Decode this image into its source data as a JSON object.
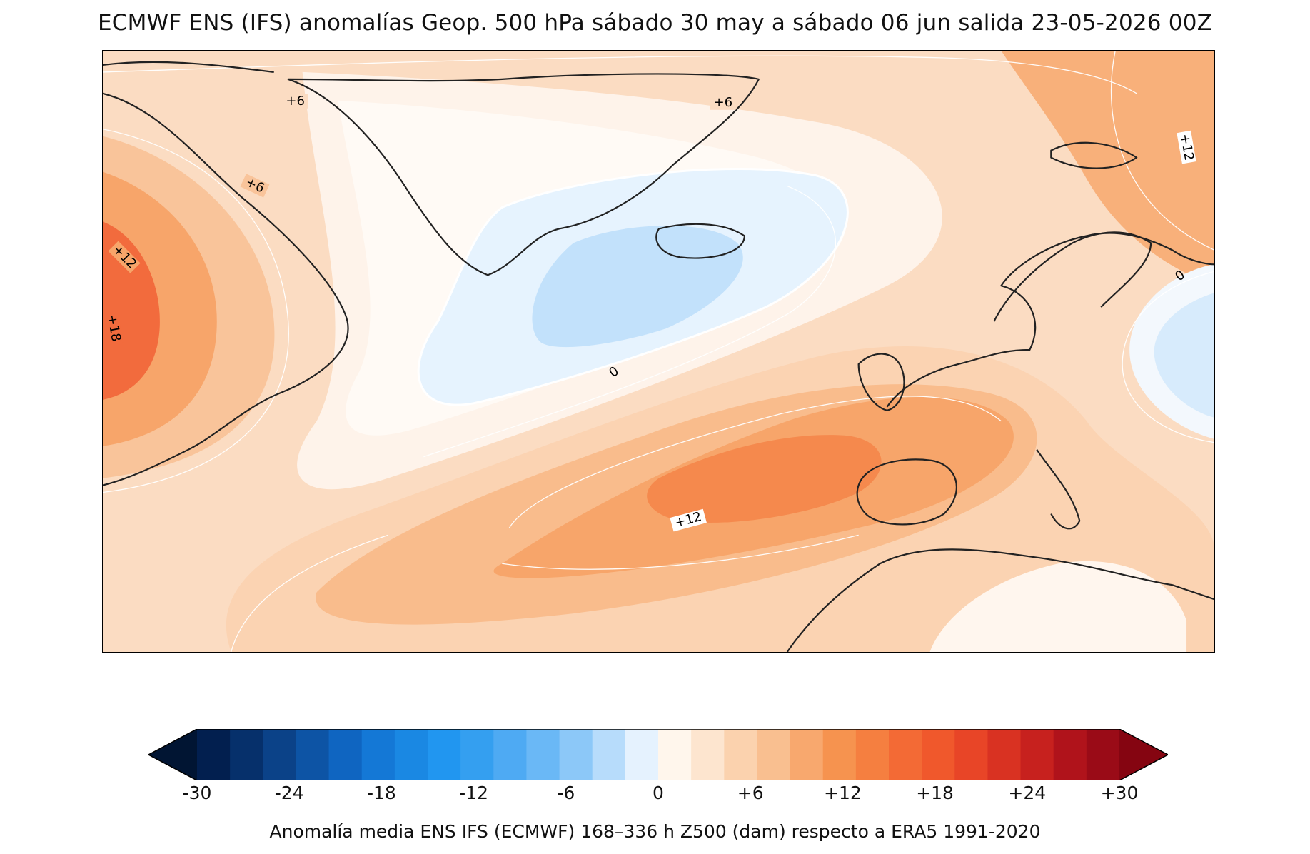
{
  "title": "ECMWF ENS (IFS) anomalías Geop. 500 hPa sábado 30 may a sábado 06 jun salida 23-05-2026 00Z",
  "map": {
    "contour_labels": [
      {
        "id": "c1",
        "text": "+6"
      },
      {
        "id": "c2",
        "text": "+6"
      },
      {
        "id": "c3",
        "text": "+6"
      },
      {
        "id": "c4",
        "text": "+12"
      },
      {
        "id": "c5",
        "text": "+12"
      },
      {
        "id": "c6",
        "text": "+18"
      },
      {
        "id": "c7",
        "text": "0"
      },
      {
        "id": "c8",
        "text": "+12"
      },
      {
        "id": "c9",
        "text": "0"
      }
    ],
    "palette": {
      "neg_strong": "#9ecbf0",
      "neg_mid": "#c2e1fb",
      "neg_weak": "#e6f3fe",
      "zero": "#fef6ee",
      "pos_3": "#fde6d2",
      "pos_6": "#fbd3b2",
      "pos_9": "#f9bc8c",
      "pos_12": "#f7a56a",
      "pos_15": "#f5894d",
      "pos_18": "#f26b3d"
    }
  },
  "colorbar": {
    "ticks": [
      "-30",
      "-24",
      "-18",
      "-12",
      "-6",
      "0",
      "+6",
      "+12",
      "+18",
      "+24",
      "+30"
    ],
    "colors": [
      "#021f4f",
      "#06306b",
      "#0b4288",
      "#0d54a5",
      "#0f65c1",
      "#1478d6",
      "#1a88e3",
      "#2196f0",
      "#349ff0",
      "#4eaaf3",
      "#6ab8f6",
      "#8cc8f8",
      "#b7dcfb",
      "#e5f2fe",
      "#fff6ec",
      "#fde5cf",
      "#fbd2ae",
      "#f9bf90",
      "#f8a86e",
      "#f6934f",
      "#f57f40",
      "#f36a35",
      "#f0582c",
      "#e84527",
      "#d93222",
      "#c7211e",
      "#b0131b",
      "#9a0b17"
    ],
    "under_color": "#011533",
    "over_color": "#850511"
  },
  "caption": "Anomalía media ENS IFS (ECMWF) 168–336 h Z500 (dam) respecto a ERA5 1991-2020"
}
